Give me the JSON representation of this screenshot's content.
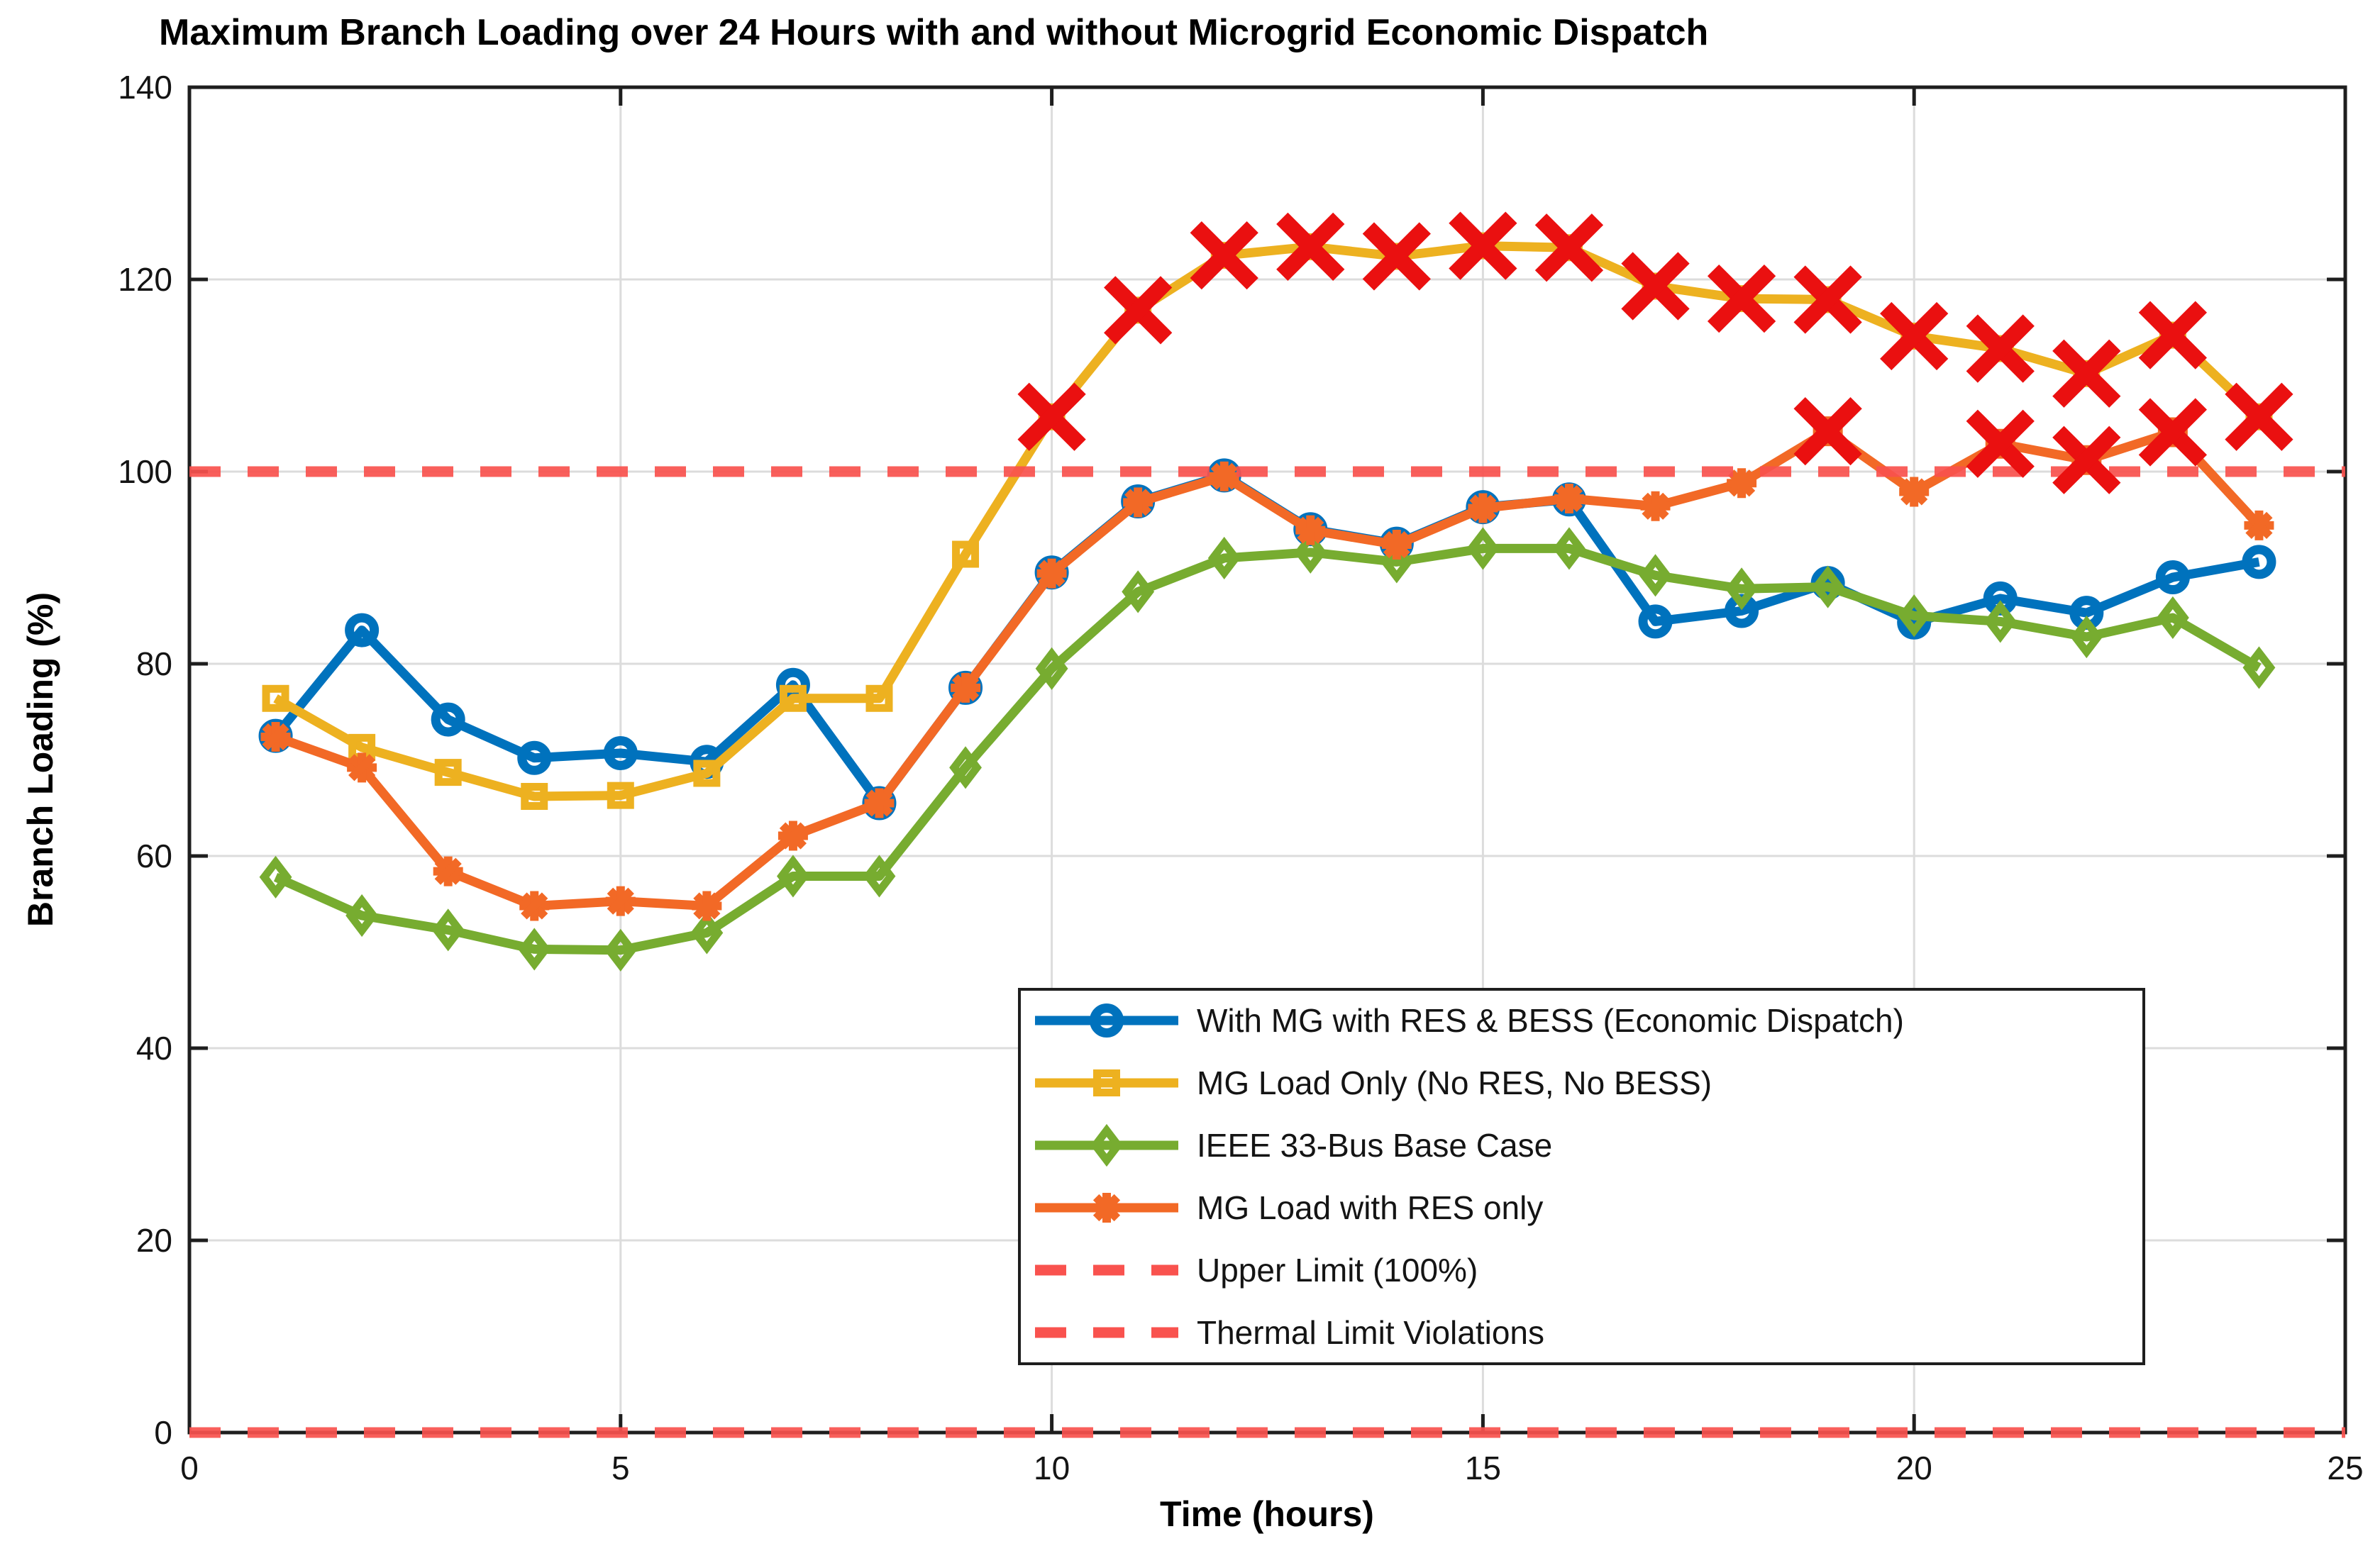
{
  "title": "Maximum Branch Loading over 24 Hours with and without Microgrid Economic Dispatch",
  "axes": {
    "xlabel": "Time (hours)",
    "ylabel": "Branch Loading (%)",
    "xlim": [
      0,
      25
    ],
    "ylim": [
      0,
      140
    ],
    "x_ticks": [
      0,
      5,
      10,
      15,
      20,
      25
    ],
    "y_ticks": [
      0,
      20,
      40,
      60,
      80,
      100,
      120,
      140
    ],
    "grid": true
  },
  "colors": {
    "blue": "#0072BD",
    "yellow": "#EDB120",
    "green": "#77AC30",
    "orange": "#F26926",
    "limit_red": "#F9524E",
    "violation_red": "#EA1010",
    "gridline": "#DCDCDC",
    "axis": "#1E1E1E"
  },
  "chart_data": {
    "type": "line",
    "x": [
      1,
      2,
      3,
      4,
      5,
      6,
      7,
      8,
      9,
      10,
      11,
      12,
      13,
      14,
      15,
      16,
      17,
      18,
      19,
      20,
      21,
      22,
      23,
      24
    ],
    "series": [
      {
        "name": "With MG with RES & BESS (Economic Dispatch)",
        "color": "#0072BD",
        "marker": "circle",
        "values": [
          72.5,
          83.5,
          74.2,
          70.2,
          70.7,
          69.8,
          77.8,
          65.5,
          77.5,
          89.5,
          96.9,
          99.6,
          94.0,
          92.5,
          96.3,
          97.1,
          84.4,
          85.5,
          88.4,
          84.3,
          86.8,
          85.3,
          89.0,
          90.6
        ]
      },
      {
        "name": "MG Load Only (No RES, No BESS)",
        "color": "#EDB120",
        "marker": "square",
        "values": [
          76.4,
          71.3,
          68.7,
          66.2,
          66.3,
          68.6,
          76.4,
          76.4,
          91.4,
          105.7,
          116.8,
          122.5,
          123.4,
          122.4,
          123.5,
          123.3,
          119.3,
          118.0,
          117.9,
          114.1,
          112.8,
          110.2,
          114.2,
          105.7
        ]
      },
      {
        "name": "IEEE 33-Bus Base Case",
        "color": "#77AC30",
        "marker": "diamond",
        "values": [
          57.8,
          53.8,
          52.3,
          50.3,
          50.2,
          52.0,
          57.9,
          57.9,
          69.2,
          79.5,
          87.5,
          91.0,
          91.6,
          90.6,
          92.0,
          92.0,
          89.2,
          87.8,
          88.0,
          85.0,
          84.4,
          82.8,
          84.8,
          79.6
        ]
      },
      {
        "name": "MG Load with RES only",
        "color": "#F26926",
        "marker": "asterisk",
        "values": [
          72.4,
          69.2,
          58.4,
          54.8,
          55.3,
          54.8,
          62.1,
          65.5,
          77.5,
          89.4,
          96.8,
          99.5,
          93.9,
          92.4,
          96.2,
          97.2,
          96.4,
          98.8,
          104.2,
          97.9,
          102.9,
          101.2,
          104.1,
          94.4
        ]
      }
    ],
    "reference_lines": [
      {
        "label": "Upper Limit (100%)",
        "y": 100,
        "color": "#F9524E",
        "style": "dashed"
      },
      {
        "label": "Thermal Limit Violations",
        "y": 0,
        "color": "#F9524E",
        "style": "dashed"
      }
    ],
    "violation_markers": {
      "symbol": "x",
      "color": "#EA1010",
      "points": [
        {
          "series_index": 1,
          "hours": [
            10,
            11,
            12,
            13,
            14,
            15,
            16,
            17,
            18,
            19,
            20,
            21,
            22,
            23,
            24
          ]
        },
        {
          "series_index": 3,
          "hours": [
            19,
            21,
            22,
            23
          ]
        }
      ]
    },
    "legend": {
      "position": "inside-bottom-right",
      "items": [
        {
          "label": "With MG with RES & BESS (Economic Dispatch)",
          "color": "#0072BD",
          "line": "solid",
          "marker": "circle"
        },
        {
          "label": "MG Load Only (No RES, No BESS)",
          "color": "#EDB120",
          "line": "solid",
          "marker": "square"
        },
        {
          "label": "IEEE 33-Bus Base Case",
          "color": "#77AC30",
          "line": "solid",
          "marker": "diamond"
        },
        {
          "label": "MG Load with RES only",
          "color": "#F26926",
          "line": "solid",
          "marker": "asterisk"
        },
        {
          "label": "Upper Limit (100%)",
          "color": "#F9524E",
          "line": "dashed",
          "marker": null
        },
        {
          "label": "Thermal Limit Violations",
          "color": "#F9524E",
          "line": "dashed",
          "marker": null
        }
      ]
    }
  }
}
